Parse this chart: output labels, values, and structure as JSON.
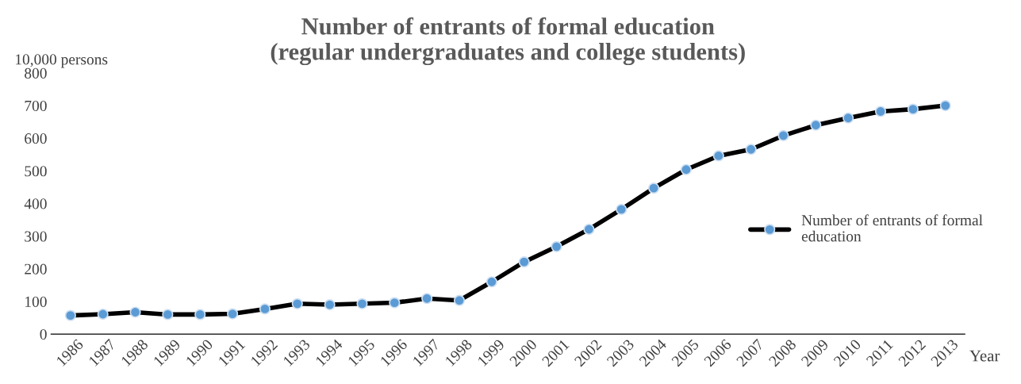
{
  "chart_data": {
    "type": "line",
    "title": "Number of entrants of formal education\n(regular undergraduates and college students)",
    "ylabel": "10,000 persons",
    "xlabel": "Year",
    "categories": [
      "1986",
      "1987",
      "1988",
      "1989",
      "1990",
      "1991",
      "1992",
      "1993",
      "1994",
      "1995",
      "1996",
      "1997",
      "1998",
      "1999",
      "2000",
      "2001",
      "2002",
      "2003",
      "2004",
      "2005",
      "2006",
      "2007",
      "2008",
      "2009",
      "2010",
      "2011",
      "2012",
      "2013"
    ],
    "series": [
      {
        "name": "Number of entrants of formal education",
        "color": "#000000",
        "values": [
          57,
          61,
          67,
          60,
          60,
          62,
          77,
          93,
          90,
          93,
          96,
          109,
          103,
          160,
          221,
          268,
          321,
          382,
          447,
          504,
          546,
          566,
          608,
          640,
          662,
          682,
          689,
          700
        ]
      }
    ],
    "ylim": [
      0,
      800
    ],
    "yticks": [
      0,
      100,
      200,
      300,
      400,
      500,
      600,
      700,
      800
    ],
    "grid": false,
    "legend": "right",
    "marker": "circle",
    "line_style": "solid"
  }
}
